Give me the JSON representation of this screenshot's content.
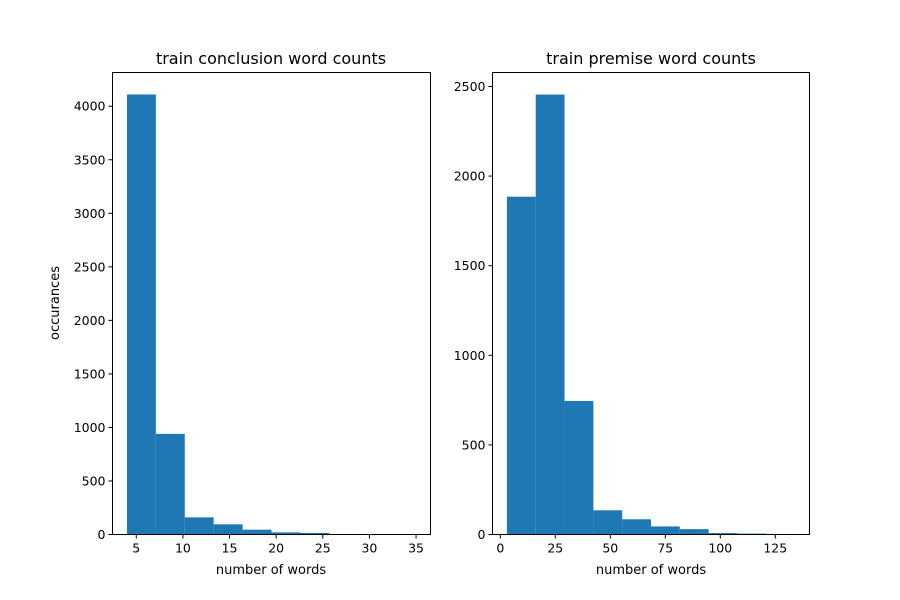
{
  "figure": {
    "background": "#ffffff",
    "bar_color": "#1f77b4"
  },
  "chart_data": [
    {
      "type": "bar",
      "histogram": true,
      "title": "train conclusion word counts",
      "xlabel": "number of words",
      "ylabel": "occurances",
      "bin_edges": [
        4,
        7.1,
        10.2,
        13.3,
        16.4,
        19.5,
        22.6,
        25.7,
        28.8,
        31.9,
        35
      ],
      "values": [
        4110,
        940,
        160,
        95,
        45,
        20,
        15,
        5,
        2,
        2
      ],
      "xlim": [
        2.45,
        36.55
      ],
      "ylim": [
        0,
        4315
      ],
      "xticks": [
        5,
        10,
        15,
        20,
        25,
        30,
        35
      ],
      "xtick_labels": [
        "5",
        "10",
        "15",
        "20",
        "25",
        "30",
        "35"
      ],
      "yticks": [
        0,
        500,
        1000,
        1500,
        2000,
        2500,
        3000,
        3500,
        4000
      ],
      "ytick_labels": [
        "0",
        "500",
        "1000",
        "1500",
        "2000",
        "2500",
        "3000",
        "3500",
        "4000"
      ],
      "grid": false,
      "color": "#1f77b4"
    },
    {
      "type": "bar",
      "histogram": true,
      "title": "train premise word counts",
      "xlabel": "number of words",
      "ylabel": "",
      "bin_edges": [
        3,
        16.1,
        29.2,
        42.3,
        55.4,
        68.5,
        81.6,
        94.7,
        107.8,
        120.9,
        134
      ],
      "values": [
        1885,
        2455,
        745,
        135,
        85,
        45,
        30,
        8,
        5,
        3
      ],
      "xlim": [
        -3.55,
        140.55
      ],
      "ylim": [
        0,
        2578
      ],
      "xticks": [
        0,
        25,
        50,
        75,
        100,
        125
      ],
      "xtick_labels": [
        "0",
        "25",
        "50",
        "75",
        "100",
        "125"
      ],
      "yticks": [
        0,
        500,
        1000,
        1500,
        2000,
        2500
      ],
      "ytick_labels": [
        "0",
        "500",
        "1000",
        "1500",
        "2000",
        "2500"
      ],
      "grid": false,
      "color": "#1f77b4"
    }
  ]
}
